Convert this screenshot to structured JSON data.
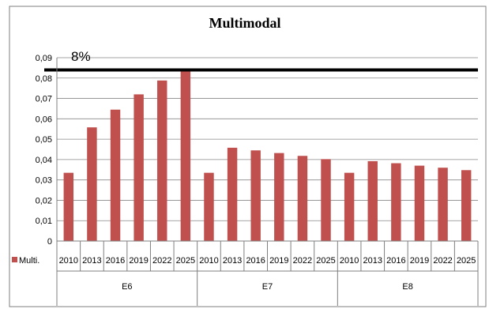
{
  "chart_data": {
    "type": "bar",
    "title": "Multimodal",
    "xlabel": "",
    "ylabel": "",
    "ylim": [
      0,
      0.09
    ],
    "yticks": [
      "0",
      "0,01",
      "0,02",
      "0,03",
      "0,04",
      "0,05",
      "0,06",
      "0,07",
      "0,08",
      "0,09"
    ],
    "grid": true,
    "legend": {
      "entries": [
        "Multi."
      ],
      "placement": "bottom-left"
    },
    "colors": {
      "bar": "#C0504D",
      "reference_line": "#000000",
      "grid": "#888888"
    },
    "groups": [
      {
        "label": "E6",
        "categories": [
          "2010",
          "2013",
          "2016",
          "2019",
          "2022",
          "2025"
        ],
        "values": [
          0.0335,
          0.0558,
          0.0645,
          0.072,
          0.0788,
          0.084
        ]
      },
      {
        "label": "E7",
        "categories": [
          "2010",
          "2013",
          "2016",
          "2019",
          "2022",
          "2025"
        ],
        "values": [
          0.0335,
          0.0458,
          0.0445,
          0.0432,
          0.0418,
          0.0402
        ]
      },
      {
        "label": "E8",
        "categories": [
          "2010",
          "2013",
          "2016",
          "2019",
          "2022",
          "2025"
        ],
        "values": [
          0.0335,
          0.0392,
          0.0382,
          0.037,
          0.036,
          0.0348
        ]
      }
    ],
    "series": [
      {
        "name": "Multi."
      }
    ],
    "reference_line": {
      "value": 0.084,
      "label": "8%"
    }
  }
}
